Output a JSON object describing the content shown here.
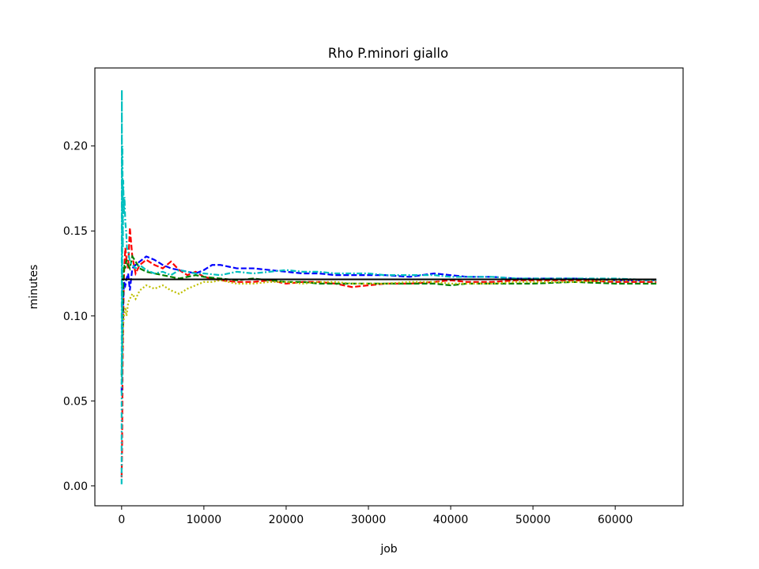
{
  "chart_data": {
    "type": "line",
    "title": "Rho P.minori giallo",
    "xlabel": "job",
    "ylabel": "minutes",
    "xlim": [
      -3250,
      68250
    ],
    "ylim": [
      -0.0117,
      0.2459
    ],
    "xticks": [
      0,
      10000,
      20000,
      30000,
      40000,
      50000,
      60000
    ],
    "xtick_labels": [
      "0",
      "10000",
      "20000",
      "30000",
      "40000",
      "50000",
      "60000"
    ],
    "yticks": [
      0.0,
      0.05,
      0.1,
      0.15,
      0.2
    ],
    "ytick_labels": [
      "0.00",
      "0.05",
      "0.10",
      "0.15",
      "0.20"
    ],
    "grid": false,
    "reference_line": {
      "y": 0.1215,
      "x_start": 0,
      "x_end": 65000,
      "color": "#000000"
    },
    "series": [
      {
        "color": "#ff0000",
        "style": "dashed",
        "x": [
          0,
          50,
          120,
          200,
          300,
          450,
          600,
          800,
          1000,
          1300,
          1700,
          2200,
          3000,
          4000,
          5000,
          6000,
          7000,
          8000,
          9000,
          10000,
          12000,
          14000,
          16000,
          18000,
          20000,
          22000,
          24000,
          26000,
          28000,
          30000,
          32000,
          35000,
          38000,
          40000,
          42000,
          45000,
          48000,
          50000,
          55000,
          60000,
          65000
        ],
        "y": [
          0.005,
          0.02,
          0.07,
          0.1,
          0.125,
          0.14,
          0.133,
          0.128,
          0.152,
          0.135,
          0.125,
          0.13,
          0.133,
          0.13,
          0.128,
          0.132,
          0.127,
          0.124,
          0.126,
          0.123,
          0.121,
          0.12,
          0.12,
          0.121,
          0.119,
          0.12,
          0.12,
          0.119,
          0.117,
          0.118,
          0.119,
          0.119,
          0.12,
          0.121,
          0.12,
          0.12,
          0.121,
          0.121,
          0.121,
          0.12,
          0.12
        ]
      },
      {
        "color": "#0000ff",
        "style": "dashed",
        "x": [
          0,
          50,
          120,
          200,
          300,
          450,
          600,
          800,
          1000,
          1300,
          1700,
          2200,
          3000,
          4000,
          5000,
          6000,
          7000,
          8000,
          9000,
          10000,
          11000,
          12000,
          14000,
          16000,
          18000,
          20000,
          22000,
          24000,
          26000,
          28000,
          30000,
          32000,
          35000,
          38000,
          40000,
          42000,
          45000,
          48000,
          50000,
          55000,
          60000,
          65000
        ],
        "y": [
          0.055,
          0.07,
          0.09,
          0.11,
          0.12,
          0.118,
          0.122,
          0.125,
          0.115,
          0.128,
          0.13,
          0.132,
          0.135,
          0.133,
          0.13,
          0.128,
          0.127,
          0.126,
          0.125,
          0.127,
          0.13,
          0.13,
          0.128,
          0.128,
          0.127,
          0.126,
          0.125,
          0.125,
          0.124,
          0.124,
          0.124,
          0.124,
          0.123,
          0.125,
          0.124,
          0.123,
          0.123,
          0.122,
          0.122,
          0.122,
          0.121,
          0.121
        ]
      },
      {
        "color": "#008000",
        "style": "dashed",
        "x": [
          0,
          50,
          120,
          200,
          300,
          450,
          600,
          800,
          1000,
          1300,
          1700,
          2200,
          3000,
          4000,
          5000,
          6000,
          7000,
          8000,
          9000,
          10000,
          12000,
          14000,
          16000,
          18000,
          20000,
          22000,
          24000,
          26000,
          28000,
          30000,
          32000,
          35000,
          38000,
          40000,
          42000,
          45000,
          48000,
          50000,
          55000,
          60000,
          65000
        ],
        "y": [
          0.065,
          0.08,
          0.1,
          0.12,
          0.13,
          0.128,
          0.133,
          0.13,
          0.128,
          0.135,
          0.132,
          0.128,
          0.126,
          0.125,
          0.124,
          0.123,
          0.122,
          0.123,
          0.124,
          0.123,
          0.122,
          0.121,
          0.122,
          0.121,
          0.12,
          0.12,
          0.119,
          0.119,
          0.119,
          0.119,
          0.119,
          0.119,
          0.119,
          0.118,
          0.119,
          0.119,
          0.119,
          0.119,
          0.12,
          0.119,
          0.119
        ]
      },
      {
        "color": "#bfbf00",
        "style": "dotted",
        "x": [
          0,
          50,
          120,
          200,
          300,
          450,
          600,
          800,
          1000,
          1300,
          1700,
          2200,
          3000,
          4000,
          5000,
          6000,
          7000,
          8000,
          9000,
          10000,
          11000,
          12000,
          14000,
          16000,
          18000,
          20000,
          22000,
          24000,
          26000,
          28000,
          30000,
          32000,
          35000,
          38000,
          40000,
          42000,
          45000,
          48000,
          50000,
          55000,
          60000,
          65000
        ],
        "y": [
          0.06,
          0.07,
          0.085,
          0.095,
          0.1,
          0.105,
          0.1,
          0.108,
          0.11,
          0.113,
          0.11,
          0.115,
          0.118,
          0.116,
          0.118,
          0.115,
          0.113,
          0.116,
          0.118,
          0.12,
          0.12,
          0.121,
          0.119,
          0.119,
          0.12,
          0.12,
          0.119,
          0.12,
          0.12,
          0.119,
          0.119,
          0.119,
          0.12,
          0.12,
          0.119,
          0.119,
          0.119,
          0.12,
          0.12,
          0.12,
          0.121,
          0.121
        ]
      },
      {
        "color": "#00bfbf",
        "style": "dashdot",
        "x": [
          0,
          30,
          60,
          100,
          150,
          200,
          280,
          350,
          450,
          550,
          650,
          800,
          1000,
          1300,
          1700,
          2200,
          3000,
          4000,
          5000,
          6000,
          7000,
          8000,
          9000,
          10000,
          12000,
          14000,
          16000,
          18000,
          20000,
          22000,
          24000,
          26000,
          28000,
          30000,
          32000,
          35000,
          38000,
          40000,
          42000,
          45000,
          48000,
          50000,
          55000,
          60000,
          65000
        ],
        "y": [
          0.001,
          0.233,
          0.06,
          0.2,
          0.14,
          0.18,
          0.16,
          0.17,
          0.155,
          0.15,
          0.14,
          0.138,
          0.132,
          0.13,
          0.128,
          0.13,
          0.127,
          0.125,
          0.126,
          0.124,
          0.127,
          0.126,
          0.125,
          0.125,
          0.124,
          0.126,
          0.125,
          0.126,
          0.127,
          0.126,
          0.126,
          0.125,
          0.125,
          0.125,
          0.124,
          0.124,
          0.124,
          0.123,
          0.123,
          0.123,
          0.122,
          0.122,
          0.122,
          0.122,
          0.121
        ]
      }
    ]
  }
}
